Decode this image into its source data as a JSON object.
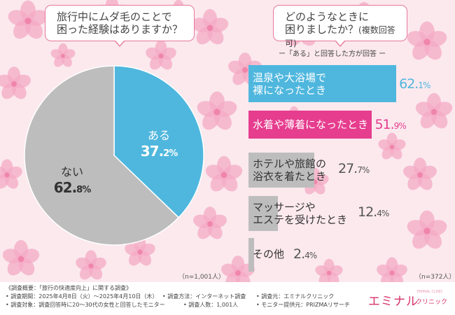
{
  "colors": {
    "accent_blue": "#4fb7de",
    "accent_pink": "#e63d8e",
    "gray": "#bdbdbd",
    "pink_border": "#e7789a",
    "background": "#fbe9ee",
    "petal": "#f4a9c4"
  },
  "question1": {
    "line1": "旅行中にムダ毛のことで",
    "line2": "困った経験はありますか？"
  },
  "question2": {
    "line1": "どのようなときに",
    "line2": "困りましたか？",
    "line2_sub": "(複数回答可)"
  },
  "bar_header": "ー「ある」と回答した方が回答 ー",
  "pie_note": "（n=1,001人）",
  "bar_note": "（n=372人）",
  "chart_data": [
    {
      "type": "pie",
      "slices": [
        {
          "label": "ある",
          "value": 37.2,
          "value_main": "37.",
          "value_dec": "2%",
          "color": "#4fb7de"
        },
        {
          "label": "ない",
          "value": 62.8,
          "value_main": "62.",
          "value_dec": "8%",
          "color": "#bdbdbd"
        }
      ],
      "note": "（n=1,001人）"
    },
    {
      "type": "bar",
      "orientation": "horizontal",
      "categories": [
        "温泉や大浴場で裸になったとき",
        "水着や薄着になったとき",
        "ホテルや旅館の浴衣を着たとき",
        "マッサージやエステを受けたとき",
        "その他"
      ],
      "values": [
        62.1,
        51.9,
        27.7,
        12.4,
        2.4
      ],
      "note": "（n=372人）"
    }
  ],
  "bars": [
    {
      "line1": "温泉や大浴場で",
      "line2": "裸になったとき",
      "main": "62.",
      "dec": "1%",
      "color": "#4fb7de",
      "text_color": "#fff",
      "value_color": "#4fb7de"
    },
    {
      "line1": "水着や薄着になったとき",
      "line2": "",
      "main": "51.",
      "dec": "9%",
      "color": "#e63d8e",
      "text_color": "#fff",
      "value_color": "#e63d8e"
    },
    {
      "line1": "ホテルや旅館の",
      "line2": "浴衣を着たとき",
      "main": "27.",
      "dec": "7%",
      "color": "#bdbdbd",
      "text_color": "#333",
      "value_color": "#555"
    },
    {
      "line1": "マッサージや",
      "line2": "エステを受けたとき",
      "main": "12.",
      "dec": "4%",
      "color": "#bdbdbd",
      "text_color": "#333",
      "value_color": "#555"
    },
    {
      "line1": "その他",
      "line2": "",
      "main": "2.",
      "dec": "4%",
      "color": "#bdbdbd",
      "text_color": "#333",
      "value_color": "#555"
    }
  ],
  "footer": {
    "line1": "《調査概要：「旅行の快適度向上」に関する調査》",
    "period": "• 調査期間：2025年4月8日（火）〜2025年4月10日（木）",
    "method": "• 調査方法：インターネット調査",
    "source": "• 調査元：エミナルクリニック",
    "target": "• 調査対象：調査回答時に20〜30代の女性と回答したモニター",
    "count": "• 調査人数：1,001人",
    "provider": "• モニター提供元：PRIZMAリサーチ"
  },
  "logo": {
    "main": "エミナル",
    "sub": "クリニック",
    "tiny": "EMINAL CLINIC"
  }
}
